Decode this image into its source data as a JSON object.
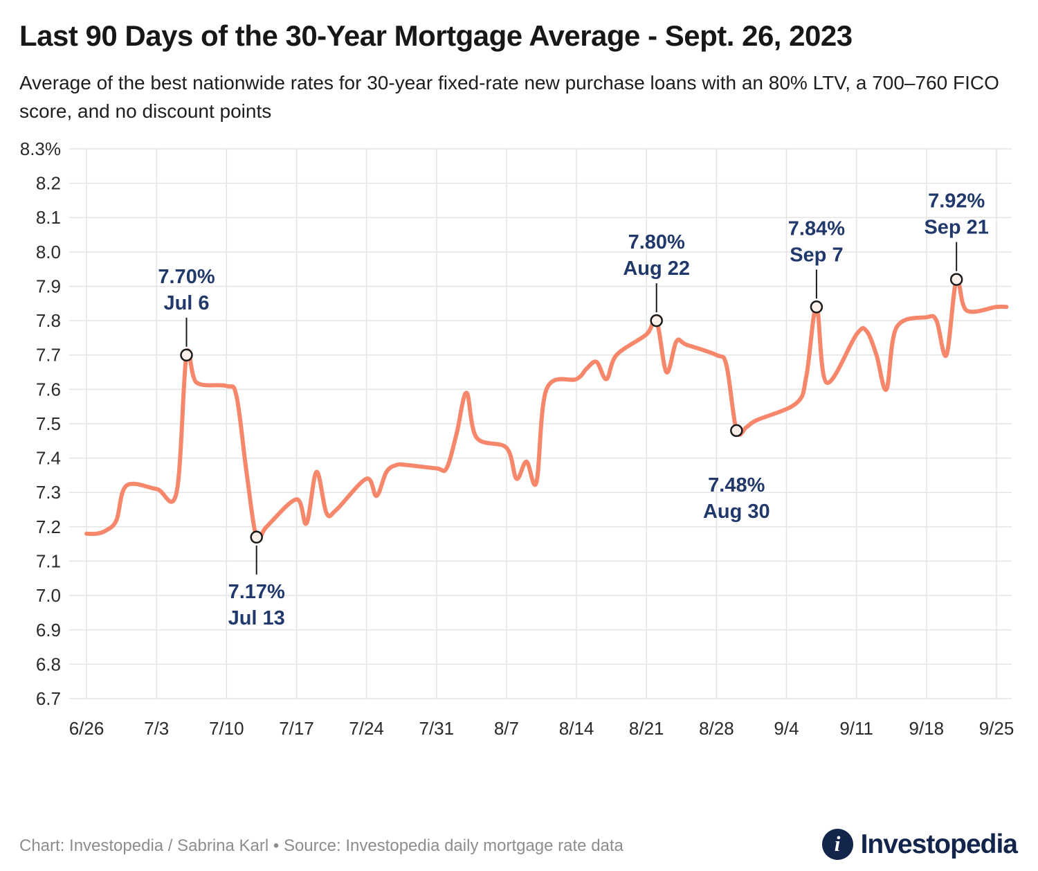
{
  "header": {
    "title": "Last 90 Days of the 30-Year Mortgage Average - Sept. 26, 2023",
    "subtitle": "Average of the best nationwide rates for 30-year fixed-rate new purchase loans with an 80% LTV, a 700–760 FICO score, and no discount points"
  },
  "footer": {
    "credit": "Chart: Investopedia / Sabrina Karl • Source: Investopedia daily mortgage rate data"
  },
  "logo": {
    "mark_glyph": "i",
    "wordmark": "Investopedia"
  },
  "colors": {
    "line": "#F6876B",
    "grid": "#E4E4E4",
    "axis_text": "#2a2a2a",
    "annotation": "#21386B",
    "connector": "#1a1a1a",
    "marker_fill": "#FDEFE9",
    "marker_stroke": "#1a1a1a",
    "brand_navy": "#14254C"
  },
  "chart_data": {
    "type": "line",
    "title": "Last 90 Days of the 30-Year Mortgage Average - Sept. 26, 2023",
    "xlabel": "",
    "ylabel": "",
    "ylim": [
      6.7,
      8.3
    ],
    "grid": true,
    "legend": "none",
    "y_ticks": [
      "8.3%",
      "8.2",
      "8.1",
      "8.0",
      "7.9",
      "7.8",
      "7.7",
      "7.6",
      "7.5",
      "7.4",
      "7.3",
      "7.2",
      "7.1",
      "7.0",
      "6.9",
      "6.8",
      "6.7"
    ],
    "x_ticks": [
      "6/26",
      "7/3",
      "7/10",
      "7/17",
      "7/24",
      "7/31",
      "8/7",
      "8/14",
      "8/21",
      "8/28",
      "9/4",
      "9/11",
      "9/18",
      "9/25"
    ],
    "series": [
      {
        "name": "30-year fixed mortgage average",
        "dates": [
          "6/26",
          "6/27",
          "6/28",
          "6/29",
          "6/30",
          "7/3",
          "7/5",
          "7/6",
          "7/7",
          "7/10",
          "7/11",
          "7/12",
          "7/13",
          "7/14",
          "7/17",
          "7/18",
          "7/19",
          "7/20",
          "7/21",
          "7/24",
          "7/25",
          "7/26",
          "7/27",
          "7/28",
          "7/31",
          "8/1",
          "8/2",
          "8/3",
          "8/4",
          "8/7",
          "8/8",
          "8/9",
          "8/10",
          "8/11",
          "8/14",
          "8/15",
          "8/16",
          "8/17",
          "8/18",
          "8/21",
          "8/22",
          "8/23",
          "8/24",
          "8/25",
          "8/28",
          "8/29",
          "8/30",
          "8/31",
          "9/1",
          "9/5",
          "9/6",
          "9/7",
          "9/8",
          "9/11",
          "9/12",
          "9/13",
          "9/14",
          "9/15",
          "9/18",
          "9/19",
          "9/20",
          "9/21",
          "9/22",
          "9/25",
          "9/26"
        ],
        "values": [
          7.18,
          7.18,
          7.19,
          7.22,
          7.32,
          7.31,
          7.3,
          7.7,
          7.62,
          7.61,
          7.58,
          7.36,
          7.17,
          7.2,
          7.28,
          7.21,
          7.36,
          7.24,
          7.25,
          7.34,
          7.29,
          7.36,
          7.38,
          7.38,
          7.37,
          7.37,
          7.47,
          7.59,
          7.46,
          7.43,
          7.34,
          7.39,
          7.33,
          7.6,
          7.63,
          7.66,
          7.68,
          7.63,
          7.7,
          7.76,
          7.8,
          7.65,
          7.74,
          7.73,
          7.7,
          7.67,
          7.48,
          7.49,
          7.51,
          7.56,
          7.64,
          7.84,
          7.62,
          7.76,
          7.77,
          7.7,
          7.6,
          7.78,
          7.81,
          7.8,
          7.7,
          7.92,
          7.83,
          7.84,
          7.84
        ]
      }
    ],
    "annotations": [
      {
        "label_rate": "7.70%",
        "label_date": "Jul 6",
        "date": "7/6",
        "value": 7.7,
        "position": "above",
        "connector": true
      },
      {
        "label_rate": "7.17%",
        "label_date": "Jul 13",
        "date": "7/13",
        "value": 7.17,
        "position": "below",
        "connector": true
      },
      {
        "label_rate": "7.80%",
        "label_date": "Aug 22",
        "date": "8/22",
        "value": 7.8,
        "position": "above",
        "connector": true
      },
      {
        "label_rate": "7.48%",
        "label_date": "Aug 30",
        "date": "8/30",
        "value": 7.48,
        "position": "below",
        "connector": false
      },
      {
        "label_rate": "7.84%",
        "label_date": "Sep 7",
        "date": "9/7",
        "value": 7.84,
        "position": "above",
        "connector": true
      },
      {
        "label_rate": "7.92%",
        "label_date": "Sep 21",
        "date": "9/21",
        "value": 7.92,
        "position": "above",
        "connector": true
      }
    ]
  }
}
